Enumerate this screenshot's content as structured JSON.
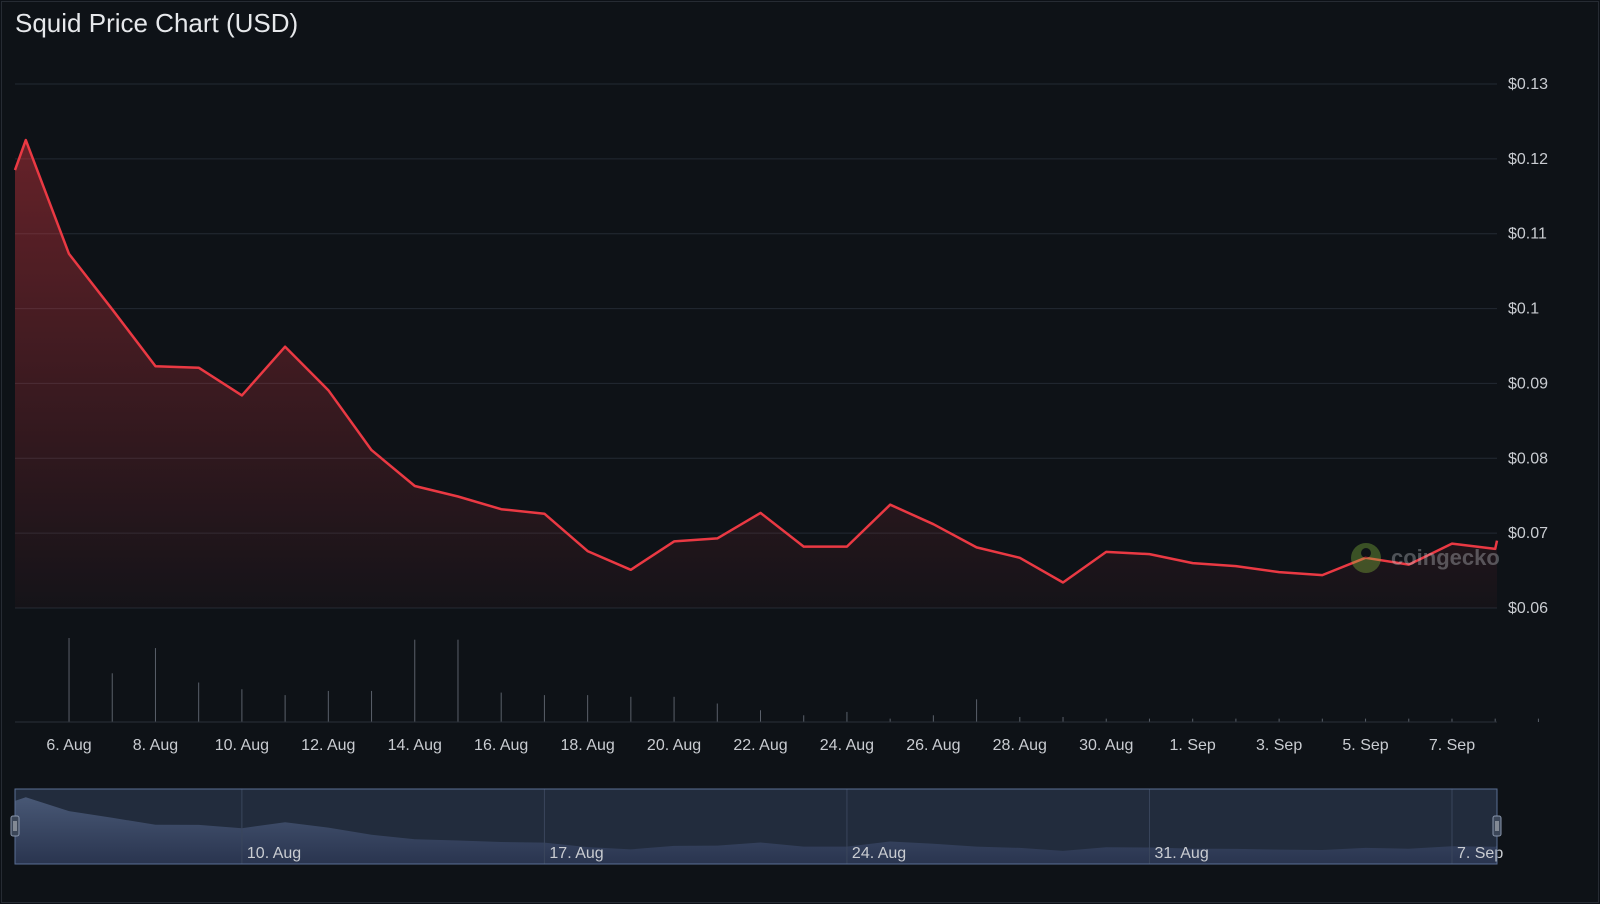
{
  "chart_data": {
    "type": "area",
    "title": "Squid Price Chart (USD)",
    "currency": "USD",
    "y_ticks": [
      "$0.06",
      "$0.07",
      "$0.08",
      "$0.09",
      "$0.1",
      "$0.11",
      "$0.12",
      "$0.13"
    ],
    "y_tick_values": [
      0.06,
      0.07,
      0.08,
      0.09,
      0.1,
      0.11,
      0.12,
      0.13
    ],
    "ylim": [
      0.06,
      0.13
    ],
    "x_ticks": [
      "6. Aug",
      "8. Aug",
      "10. Aug",
      "12. Aug",
      "14. Aug",
      "16. Aug",
      "18. Aug",
      "20. Aug",
      "22. Aug",
      "24. Aug",
      "26. Aug",
      "28. Aug",
      "30. Aug",
      "1. Sep",
      "3. Sep",
      "5. Sep",
      "7. Sep"
    ],
    "x_tick_dates": [
      "2023-08-06",
      "2023-08-08",
      "2023-08-10",
      "2023-08-12",
      "2023-08-14",
      "2023-08-16",
      "2023-08-18",
      "2023-08-20",
      "2023-08-22",
      "2023-08-24",
      "2023-08-26",
      "2023-08-28",
      "2023-08-30",
      "2023-09-01",
      "2023-09-03",
      "2023-09-05",
      "2023-09-07"
    ],
    "xlim": [
      "2023-08-04 18:00",
      "2023-09-08 01:00"
    ],
    "series": [
      {
        "color": "#ea3943",
        "points": [
          [
            "2023-08-04 18:00",
            0.1185
          ],
          [
            "2023-08-05",
            0.1225
          ],
          [
            "2023-08-06",
            0.1073
          ],
          [
            "2023-08-07",
            0.0999
          ],
          [
            "2023-08-08",
            0.0923
          ],
          [
            "2023-08-09",
            0.0921
          ],
          [
            "2023-08-10",
            0.0884
          ],
          [
            "2023-08-11",
            0.0949
          ],
          [
            "2023-08-12",
            0.0891
          ],
          [
            "2023-08-13",
            0.0811
          ],
          [
            "2023-08-14",
            0.0763
          ],
          [
            "2023-08-15",
            0.0749
          ],
          [
            "2023-08-16",
            0.0732
          ],
          [
            "2023-08-17",
            0.0726
          ],
          [
            "2023-08-18",
            0.0676
          ],
          [
            "2023-08-19",
            0.0651
          ],
          [
            "2023-08-20",
            0.0689
          ],
          [
            "2023-08-21",
            0.0693
          ],
          [
            "2023-08-22",
            0.0727
          ],
          [
            "2023-08-23",
            0.0682
          ],
          [
            "2023-08-24",
            0.0682
          ],
          [
            "2023-08-25",
            0.0738
          ],
          [
            "2023-08-26",
            0.0712
          ],
          [
            "2023-08-27",
            0.0681
          ],
          [
            "2023-08-28",
            0.0667
          ],
          [
            "2023-08-29",
            0.0634
          ],
          [
            "2023-08-30",
            0.0675
          ],
          [
            "2023-08-31",
            0.0672
          ],
          [
            "2023-09-01",
            0.066
          ],
          [
            "2023-09-02",
            0.0656
          ],
          [
            "2023-09-03",
            0.0648
          ],
          [
            "2023-09-04",
            0.0644
          ],
          [
            "2023-09-05",
            0.0667
          ],
          [
            "2023-09-06",
            0.0658
          ],
          [
            "2023-09-07",
            0.0686
          ],
          [
            "2023-09-08",
            0.0679
          ],
          [
            "2023-09-08 01:00",
            0.069
          ]
        ]
      }
    ],
    "volume_bar_heights_relative": [
      0.0,
      1.0,
      0.58,
      0.88,
      0.47,
      0.39,
      0.32,
      0.37,
      0.37,
      0.98,
      0.98,
      0.35,
      0.32,
      0.32,
      0.3,
      0.3,
      0.22,
      0.14,
      0.08,
      0.12,
      0.04,
      0.08,
      0.27,
      0.06,
      0.06,
      0.04,
      0.04,
      0.04,
      0.04,
      0.04,
      0.04,
      0.04,
      0.04,
      0.04,
      0.04,
      0.04
    ],
    "navigator": {
      "ticks": [
        "10. Aug",
        "17. Aug",
        "24. Aug",
        "31. Aug",
        "7. Sep"
      ],
      "tick_dates": [
        "2023-08-10",
        "2023-08-17",
        "2023-08-24",
        "2023-08-31",
        "2023-09-07"
      ]
    },
    "grid": true,
    "watermark": "coingecko"
  }
}
